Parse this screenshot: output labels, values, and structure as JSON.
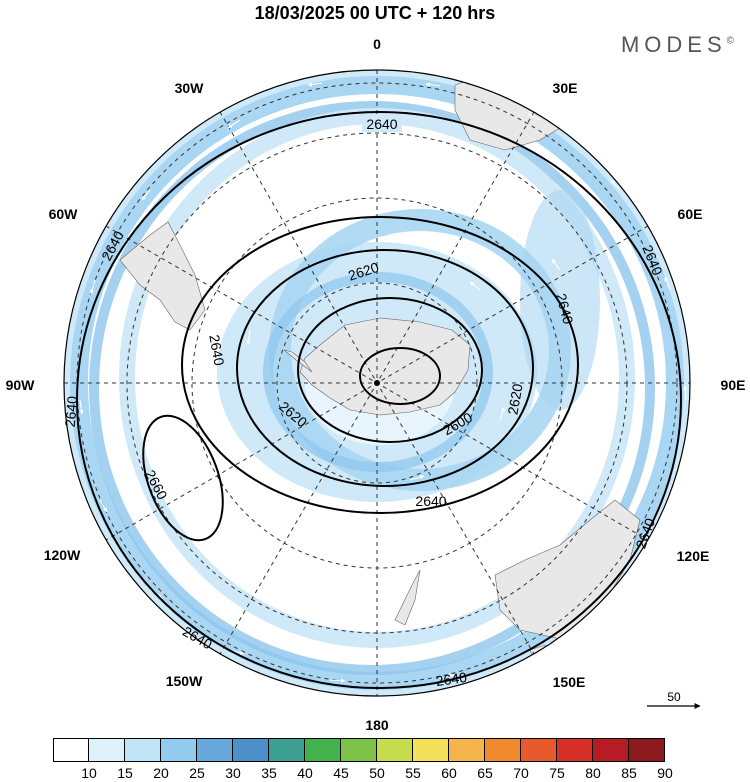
{
  "title": "18/03/2025  00 UTC  + 120 hrs",
  "brand": "MODES",
  "brand_mark": "©",
  "longitude_labels": [
    {
      "id": "lon-0",
      "text": "0"
    },
    {
      "id": "lon-30e",
      "text": "30E"
    },
    {
      "id": "lon-60e",
      "text": "60E"
    },
    {
      "id": "lon-90e",
      "text": "90E"
    },
    {
      "id": "lon-120e",
      "text": "120E"
    },
    {
      "id": "lon-150e",
      "text": "150E"
    },
    {
      "id": "lon-180",
      "text": "180"
    },
    {
      "id": "lon-150w",
      "text": "150W"
    },
    {
      "id": "lon-120w",
      "text": "120W"
    },
    {
      "id": "lon-90w",
      "text": "90W"
    },
    {
      "id": "lon-60w",
      "text": "60W"
    },
    {
      "id": "lon-30w",
      "text": "30W"
    }
  ],
  "contour_labels": [
    {
      "id": "c1",
      "text": "2640"
    },
    {
      "id": "c2",
      "text": "2640"
    },
    {
      "id": "c3",
      "text": "2640"
    },
    {
      "id": "c4",
      "text": "2640"
    },
    {
      "id": "c5",
      "text": "2640"
    },
    {
      "id": "c6",
      "text": "2640"
    },
    {
      "id": "c7",
      "text": "2640"
    },
    {
      "id": "c8",
      "text": "2640"
    },
    {
      "id": "c9",
      "text": "2640"
    },
    {
      "id": "c10",
      "text": "2620"
    },
    {
      "id": "c11",
      "text": "2620"
    },
    {
      "id": "c12",
      "text": "2620"
    },
    {
      "id": "c13",
      "text": "2640"
    },
    {
      "id": "c14",
      "text": "2600"
    },
    {
      "id": "c15",
      "text": "2660"
    }
  ],
  "vector_scale_label": "50",
  "colorbar": {
    "labels": [
      "10",
      "15",
      "20",
      "25",
      "30",
      "35",
      "40",
      "45",
      "50",
      "55",
      "60",
      "65",
      "70",
      "75",
      "80",
      "85",
      "90"
    ],
    "colors": [
      "#ffffff",
      "#dff2fc",
      "#bfe4f8",
      "#92cbee",
      "#68a9dc",
      "#4c8fc9",
      "#3d9f8f",
      "#44b24c",
      "#7ec24c",
      "#c5dc4f",
      "#f5e05a",
      "#f6b44c",
      "#f1892f",
      "#e75a2d",
      "#d63028",
      "#b71c24",
      "#8c1a1d"
    ]
  },
  "colors": {
    "land": "#e8e8e8",
    "wind_band_light": "#cfe9f8",
    "wind_band_mid": "#a9d6f2",
    "wind_band_strong": "#8dc6ec"
  }
}
